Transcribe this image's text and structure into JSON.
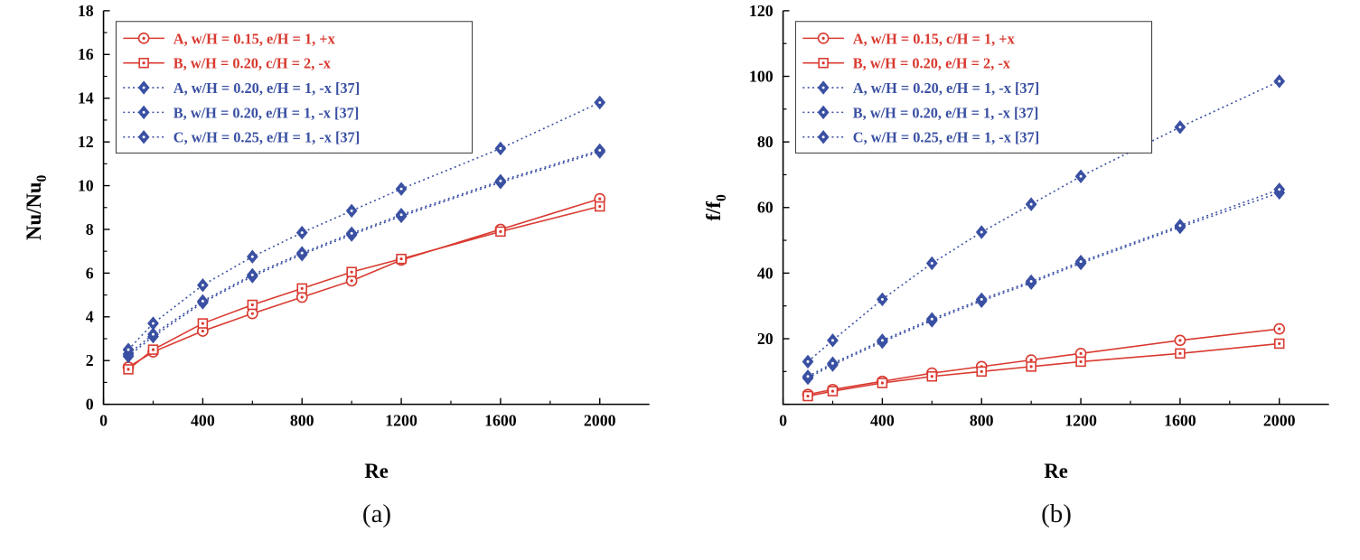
{
  "colors": {
    "red": "#d93a30",
    "blue": "#3a50a2",
    "axis": "#000000",
    "background": "#ffffff"
  },
  "captions": {
    "a": "(a)",
    "b": "(b)"
  },
  "chart_data": [
    {
      "type": "line",
      "caption": "(a)",
      "xlabel": "Re",
      "ylabel": "Nu/Nu",
      "ylabel_sub": "0",
      "xlim": [
        0,
        2200
      ],
      "ylim": [
        0,
        18
      ],
      "xticks": [
        0,
        400,
        800,
        1200,
        1600,
        2000
      ],
      "xtick_labels": [
        "0",
        "400",
        "800",
        "1200",
        "1600",
        "2000"
      ],
      "yticks": [
        0,
        2,
        4,
        6,
        8,
        10,
        12,
        14,
        16,
        18
      ],
      "ytick_labels": [
        "0",
        "2",
        "4",
        "6",
        "8",
        "10",
        "12",
        "14",
        "16",
        "18"
      ],
      "x_minor_step": 200,
      "y_minor_step": 1,
      "legend_position": "top-left",
      "grid": false,
      "x": [
        100,
        200,
        400,
        600,
        800,
        1000,
        1200,
        1600,
        2000
      ],
      "series": [
        {
          "name": "A, w/H = 0.15, e/H = 1, +x",
          "color": "#d93a30",
          "marker": "circle-dot",
          "line": "solid",
          "values": [
            1.7,
            2.4,
            3.35,
            4.15,
            4.9,
            5.65,
            6.6,
            8.0,
            9.4
          ]
        },
        {
          "name": "B, w/H = 0.20, c/H = 2, -x",
          "color": "#d93a30",
          "marker": "square-dot",
          "line": "solid",
          "values": [
            1.6,
            2.5,
            3.7,
            4.55,
            5.3,
            6.05,
            6.65,
            7.9,
            9.05
          ]
        },
        {
          "name": "A, w/H = 0.20, e/H = 1, -x [37]",
          "color": "#3a50a2",
          "marker": "diamond",
          "line": "dotted",
          "values": [
            2.2,
            3.1,
            4.65,
            5.85,
            6.85,
            7.75,
            8.6,
            10.15,
            11.55
          ]
        },
        {
          "name": "B, w/H = 0.20, e/H = 1, -x [37]",
          "color": "#3a50a2",
          "marker": "diamond",
          "line": "dotted",
          "values": [
            2.3,
            3.2,
            4.72,
            5.92,
            6.92,
            7.82,
            8.67,
            10.22,
            11.62
          ]
        },
        {
          "name": "C, w/H = 0.25, e/H = 1, -x [37]",
          "color": "#3a50a2",
          "marker": "diamond",
          "line": "dotted",
          "values": [
            2.5,
            3.7,
            5.45,
            6.75,
            7.85,
            8.85,
            9.85,
            11.7,
            13.8
          ]
        }
      ]
    },
    {
      "type": "line",
      "caption": "(b)",
      "xlabel": "Re",
      "ylabel": "f/f",
      "ylabel_sub": "0",
      "xlim": [
        0,
        2200
      ],
      "ylim": [
        0,
        120
      ],
      "xticks": [
        0,
        400,
        800,
        1200,
        1600,
        2000
      ],
      "xtick_labels": [
        "0",
        "400",
        "800",
        "1200",
        "1600",
        "2000"
      ],
      "yticks": [
        0,
        20,
        40,
        60,
        80,
        100,
        120
      ],
      "ytick_labels": [
        "",
        "20",
        "40",
        "60",
        "80",
        "100",
        "120"
      ],
      "x_minor_step": 200,
      "y_minor_step": 10,
      "legend_position": "top-left",
      "grid": false,
      "x": [
        100,
        200,
        400,
        600,
        800,
        1000,
        1200,
        1600,
        2000
      ],
      "series": [
        {
          "name": "A, w/H = 0.15, c/H = 1, +x",
          "color": "#d93a30",
          "marker": "circle-dot",
          "line": "solid",
          "values": [
            3,
            4.5,
            7,
            9.5,
            11.5,
            13.5,
            15.5,
            19.5,
            23
          ]
        },
        {
          "name": "B, w/H = 0.20, e/H = 2, -x",
          "color": "#d93a30",
          "marker": "square-dot",
          "line": "solid",
          "values": [
            2.5,
            4,
            6.5,
            8.5,
            10,
            11.5,
            13,
            15.5,
            18.5
          ]
        },
        {
          "name": "A, w/H = 0.20, e/H = 1, -x [37]",
          "color": "#3a50a2",
          "marker": "diamond",
          "line": "dotted",
          "values": [
            8,
            12,
            19,
            25.5,
            31.5,
            37,
            43,
            54,
            64.5
          ]
        },
        {
          "name": "B, w/H = 0.20, e/H = 1, -x [37]",
          "color": "#3a50a2",
          "marker": "diamond",
          "line": "dotted",
          "values": [
            8.5,
            12.5,
            19.5,
            26,
            32,
            37.5,
            43.5,
            54.5,
            65.5
          ]
        },
        {
          "name": "C, w/H = 0.25, e/H = 1, -x [37]",
          "color": "#3a50a2",
          "marker": "diamond",
          "line": "dotted",
          "values": [
            13,
            19.5,
            32,
            43,
            52.5,
            61,
            69.5,
            84.5,
            98.5
          ]
        }
      ]
    }
  ]
}
